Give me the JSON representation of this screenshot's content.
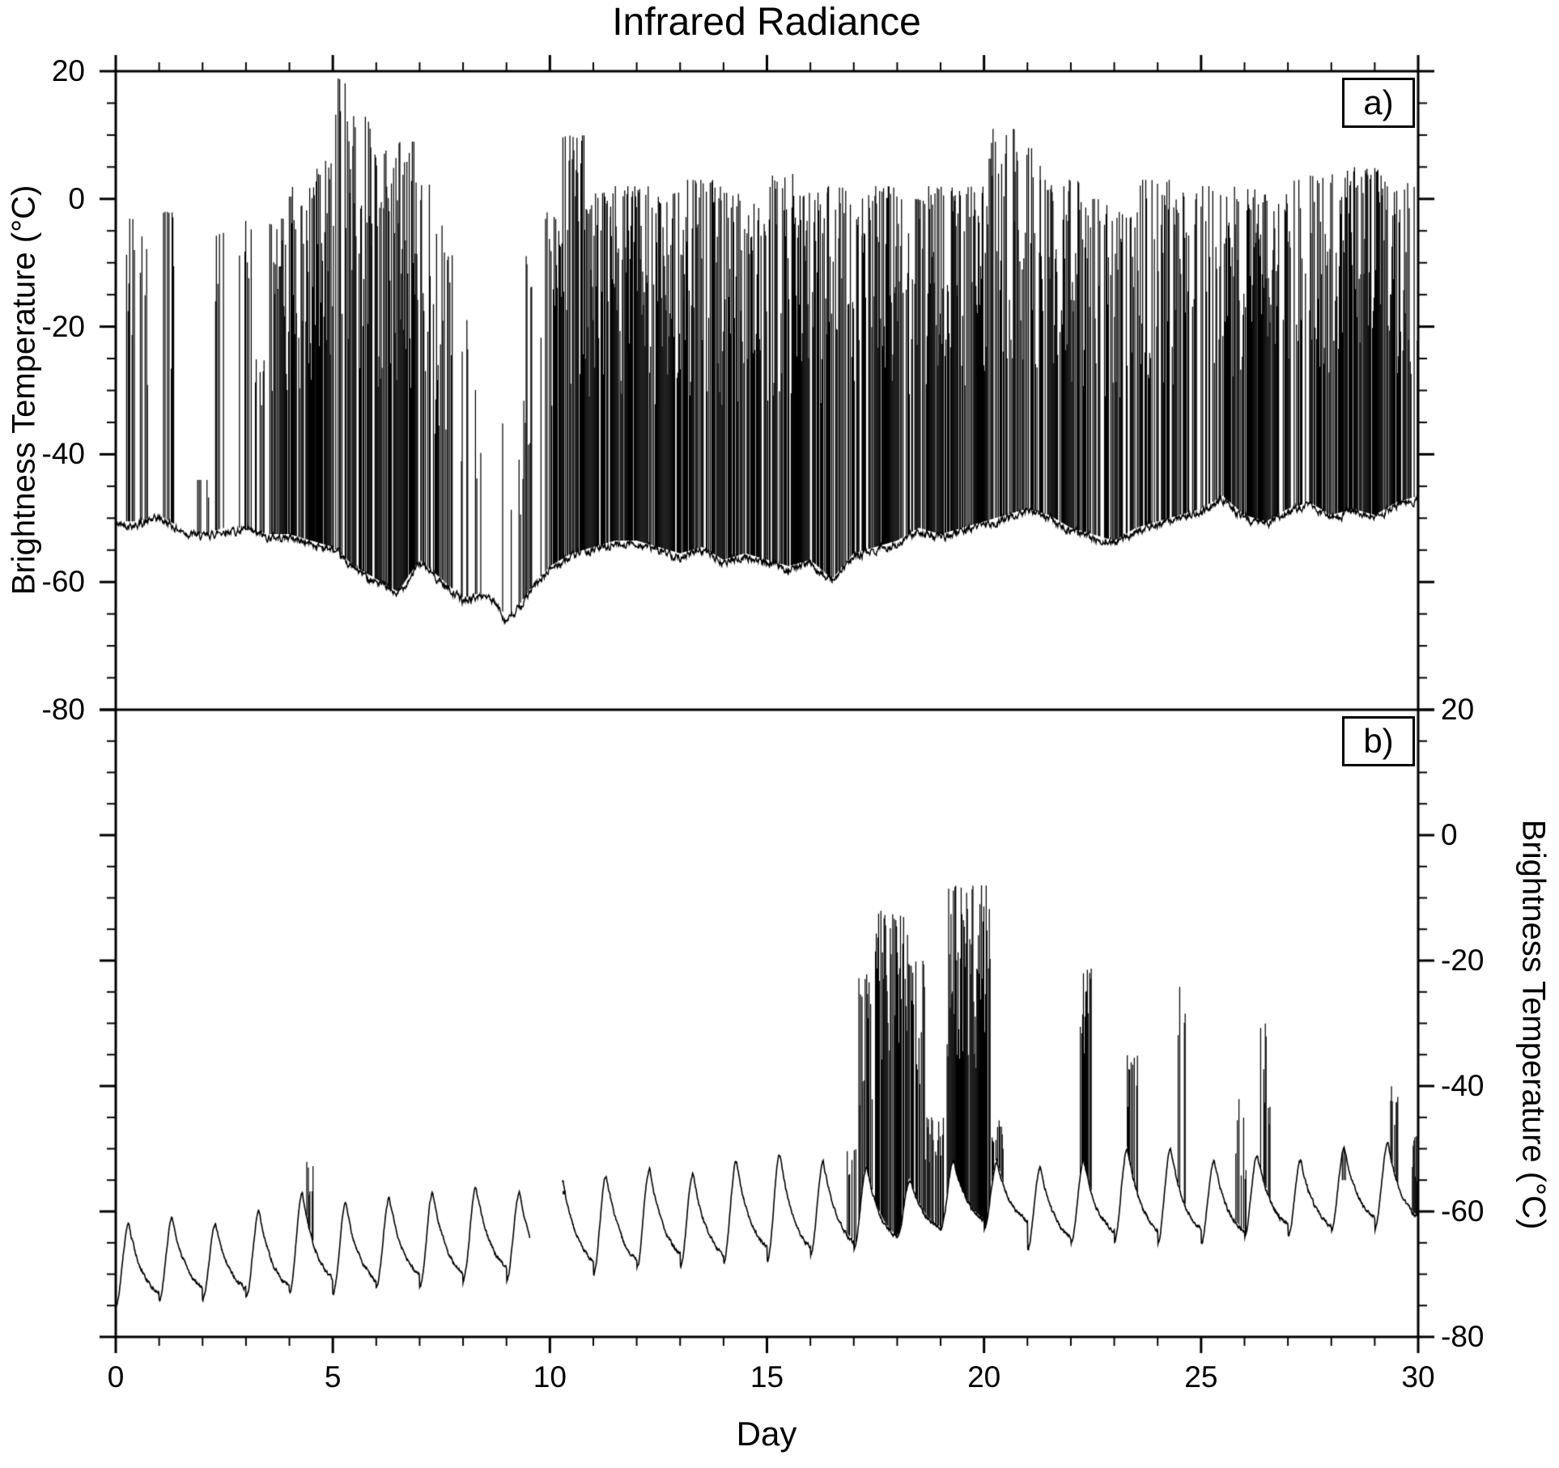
{
  "figure": {
    "title": "Infrared Radiance",
    "xlabel": "Day",
    "ylabel_left": "Brightness Temperature (°C)",
    "ylabel_right": "Brightness Temperature (°C)",
    "background": "#ffffff",
    "line_color": "#000000"
  },
  "chart_data": [
    {
      "id": "a",
      "label": "a)",
      "type": "line",
      "description": "High-frequency infrared brightness temperature: baseline near -50 to -60 C with dense cold-cloud spikes reaching 0 to +19 C",
      "xlim": [
        0,
        30
      ],
      "ylim": [
        -80,
        20
      ],
      "x_major_ticks": [
        0,
        5,
        10,
        15,
        20,
        25,
        30
      ],
      "x_tick_labels": [
        "0",
        "5",
        "10",
        "15",
        "20",
        "25",
        "30"
      ],
      "x_minor_step": 1,
      "y_major_ticks": [
        20,
        0,
        -20,
        -40,
        -60,
        -80
      ],
      "y_tick_labels": [
        "20",
        "0",
        "-20",
        "-40",
        "-60",
        "-80"
      ],
      "y_minor_step": 5,
      "y_tick_side": "left",
      "grid": false,
      "baseline": [
        [
          0,
          -51
        ],
        [
          0.5,
          -51
        ],
        [
          1,
          -50
        ],
        [
          1.5,
          -52
        ],
        [
          2,
          -53
        ],
        [
          2.5,
          -52
        ],
        [
          3,
          -52
        ],
        [
          3.5,
          -53
        ],
        [
          4,
          -53
        ],
        [
          4.5,
          -54
        ],
        [
          5,
          -55
        ],
        [
          5.5,
          -58
        ],
        [
          6,
          -60
        ],
        [
          6.5,
          -62
        ],
        [
          7,
          -57
        ],
        [
          7.5,
          -60
        ],
        [
          8,
          -63
        ],
        [
          8.5,
          -62
        ],
        [
          8.8,
          -64
        ],
        [
          9,
          -66
        ],
        [
          9.2,
          -65
        ],
        [
          9.5,
          -62
        ],
        [
          10,
          -58
        ],
        [
          10.5,
          -56
        ],
        [
          11,
          -55
        ],
        [
          11.5,
          -54
        ],
        [
          12,
          -54
        ],
        [
          12.5,
          -55
        ],
        [
          13,
          -56
        ],
        [
          13.5,
          -55
        ],
        [
          14,
          -57
        ],
        [
          14.5,
          -56
        ],
        [
          15,
          -57
        ],
        [
          15.5,
          -58
        ],
        [
          16,
          -57
        ],
        [
          16.5,
          -60
        ],
        [
          17,
          -56
        ],
        [
          17.5,
          -55
        ],
        [
          18,
          -54
        ],
        [
          18.5,
          -52
        ],
        [
          19,
          -53
        ],
        [
          19.5,
          -52
        ],
        [
          20,
          -51
        ],
        [
          20.5,
          -50
        ],
        [
          21,
          -49
        ],
        [
          21.5,
          -50
        ],
        [
          22,
          -52
        ],
        [
          22.5,
          -53
        ],
        [
          23,
          -54
        ],
        [
          23.5,
          -52
        ],
        [
          24,
          -51
        ],
        [
          24.5,
          -50
        ],
        [
          25,
          -49
        ],
        [
          25.5,
          -47
        ],
        [
          26,
          -50
        ],
        [
          26.5,
          -51
        ],
        [
          27,
          -49
        ],
        [
          27.5,
          -48
        ],
        [
          28,
          -50
        ],
        [
          28.5,
          -49
        ],
        [
          29,
          -50
        ],
        [
          29.5,
          -48
        ],
        [
          30,
          -47
        ]
      ],
      "spike_segments": [
        [
          0.25,
          0.45,
          -3,
          0.55
        ],
        [
          0.55,
          0.75,
          -4,
          0.5
        ],
        [
          1.1,
          1.35,
          -2,
          0.6
        ],
        [
          1.85,
          2.15,
          -44,
          0.45
        ],
        [
          2.3,
          2.55,
          -5,
          0.5
        ],
        [
          2.85,
          3.15,
          -2,
          0.6
        ],
        [
          3.2,
          3.5,
          -25,
          0.45
        ],
        [
          3.55,
          4.0,
          -3,
          0.7
        ],
        [
          4.0,
          4.6,
          2,
          0.8
        ],
        [
          4.6,
          5.05,
          6,
          0.85
        ],
        [
          5.05,
          5.3,
          19,
          0.5
        ],
        [
          5.3,
          5.9,
          13,
          0.8
        ],
        [
          5.9,
          6.4,
          8,
          0.7
        ],
        [
          6.4,
          6.9,
          9,
          0.85
        ],
        [
          6.9,
          7.3,
          3,
          0.6
        ],
        [
          7.3,
          7.8,
          -4,
          0.5
        ],
        [
          7.8,
          8.3,
          -18,
          0.35
        ],
        [
          8.3,
          9.4,
          -35,
          0.15
        ],
        [
          9.4,
          9.9,
          -6,
          0.4
        ],
        [
          9.9,
          10.3,
          -2,
          0.6
        ],
        [
          10.3,
          10.8,
          10,
          0.7
        ],
        [
          10.8,
          11.4,
          1,
          0.8
        ],
        [
          11.4,
          12.3,
          2,
          0.9
        ],
        [
          12.3,
          13.1,
          1,
          0.92
        ],
        [
          13.1,
          14.0,
          3,
          0.85
        ],
        [
          14.0,
          15.0,
          1,
          0.8
        ],
        [
          15.0,
          15.6,
          4,
          0.7
        ],
        [
          15.6,
          16.4,
          1,
          0.85
        ],
        [
          16.4,
          17.2,
          2,
          0.8
        ],
        [
          17.2,
          18.1,
          2,
          0.85
        ],
        [
          18.1,
          18.6,
          0,
          0.6
        ],
        [
          18.6,
          19.4,
          2,
          0.8
        ],
        [
          19.4,
          20.1,
          2,
          0.85
        ],
        [
          20.1,
          20.7,
          11,
          0.7
        ],
        [
          20.7,
          21.3,
          8,
          0.8
        ],
        [
          21.3,
          22.2,
          3,
          0.8
        ],
        [
          22.2,
          22.9,
          0,
          0.7
        ],
        [
          22.9,
          23.6,
          -2,
          0.6
        ],
        [
          23.6,
          24.3,
          3,
          0.75
        ],
        [
          24.3,
          25.0,
          1,
          0.6
        ],
        [
          25.0,
          25.5,
          2,
          0.5
        ],
        [
          25.5,
          26.3,
          2,
          0.8
        ],
        [
          26.3,
          27.0,
          1,
          0.7
        ],
        [
          27.0,
          27.35,
          3,
          0.6
        ],
        [
          27.35,
          27.5,
          14,
          0.4
        ],
        [
          27.5,
          28.3,
          4,
          0.8
        ],
        [
          28.3,
          29.2,
          5,
          0.8
        ],
        [
          29.2,
          29.8,
          3,
          0.7
        ],
        [
          29.8,
          30.0,
          2,
          0.5
        ]
      ]
    },
    {
      "id": "b",
      "label": "b)",
      "type": "line",
      "description": "Diurnal cycle of brightness temperature between about -75 and -50 C with convective spike bursts (days 17-20 up to -8 C) and isolated spikes later",
      "xlim": [
        0,
        30
      ],
      "ylim": [
        -80,
        20
      ],
      "x_major_ticks": [
        0,
        5,
        10,
        15,
        20,
        25,
        30
      ],
      "x_tick_labels": [
        "0",
        "5",
        "10",
        "15",
        "20",
        "25",
        "30"
      ],
      "x_minor_step": 1,
      "y_major_ticks": [
        20,
        0,
        -20,
        -40,
        -60,
        -80
      ],
      "y_tick_labels": [
        "20",
        "0",
        "-20",
        "-40",
        "-60",
        "-80"
      ],
      "y_minor_step": 5,
      "y_tick_side": "right",
      "grid": false,
      "diurnal_min_max_per_day": [
        [
          -75,
          -62
        ],
        [
          -74,
          -61
        ],
        [
          -74,
          -62
        ],
        [
          -74,
          -60
        ],
        [
          -73,
          -57
        ],
        [
          -73,
          -59
        ],
        [
          -72,
          -58
        ],
        [
          -72,
          -57
        ],
        [
          -71,
          -56
        ],
        [
          -71,
          -57
        ],
        [
          -70,
          -55
        ],
        [
          -70,
          -54
        ],
        [
          -69,
          -53
        ],
        [
          -69,
          -54
        ],
        [
          -68,
          -52
        ],
        [
          -68,
          -51
        ],
        [
          -67,
          -52
        ],
        [
          -66,
          -53
        ],
        [
          -64,
          -55
        ],
        [
          -63,
          -52
        ],
        [
          -63,
          -52
        ],
        [
          -66,
          -53
        ],
        [
          -65,
          -52
        ],
        [
          -65,
          -50
        ],
        [
          -65,
          -50
        ],
        [
          -65,
          -52
        ],
        [
          -64,
          -51
        ],
        [
          -64,
          -52
        ],
        [
          -63,
          -50
        ],
        [
          -63,
          -49
        ]
      ],
      "gaps": [
        [
          9.55,
          10.28
        ]
      ],
      "gap_dot": [
        10.33,
        -57
      ],
      "spike_segments": [
        [
          4.4,
          4.55,
          -52,
          0.5
        ],
        [
          16.85,
          17.05,
          -50,
          0.5
        ],
        [
          17.1,
          17.45,
          -22,
          0.6
        ],
        [
          17.5,
          18.25,
          -12,
          0.85
        ],
        [
          18.25,
          18.65,
          -20,
          0.7
        ],
        [
          18.65,
          19.1,
          -45,
          0.5
        ],
        [
          19.15,
          20.15,
          -8,
          0.95
        ],
        [
          20.15,
          20.45,
          -45,
          0.6
        ],
        [
          22.2,
          22.5,
          -21,
          0.5
        ],
        [
          23.3,
          23.55,
          -35,
          0.5
        ],
        [
          24.4,
          24.65,
          -22,
          0.5
        ],
        [
          25.8,
          26.05,
          -42,
          0.5
        ],
        [
          26.3,
          26.6,
          -30,
          0.5
        ],
        [
          28.2,
          28.35,
          -55,
          0.4
        ],
        [
          29.35,
          29.6,
          -40,
          0.5
        ],
        [
          29.85,
          30.0,
          -48,
          0.5
        ]
      ]
    }
  ]
}
